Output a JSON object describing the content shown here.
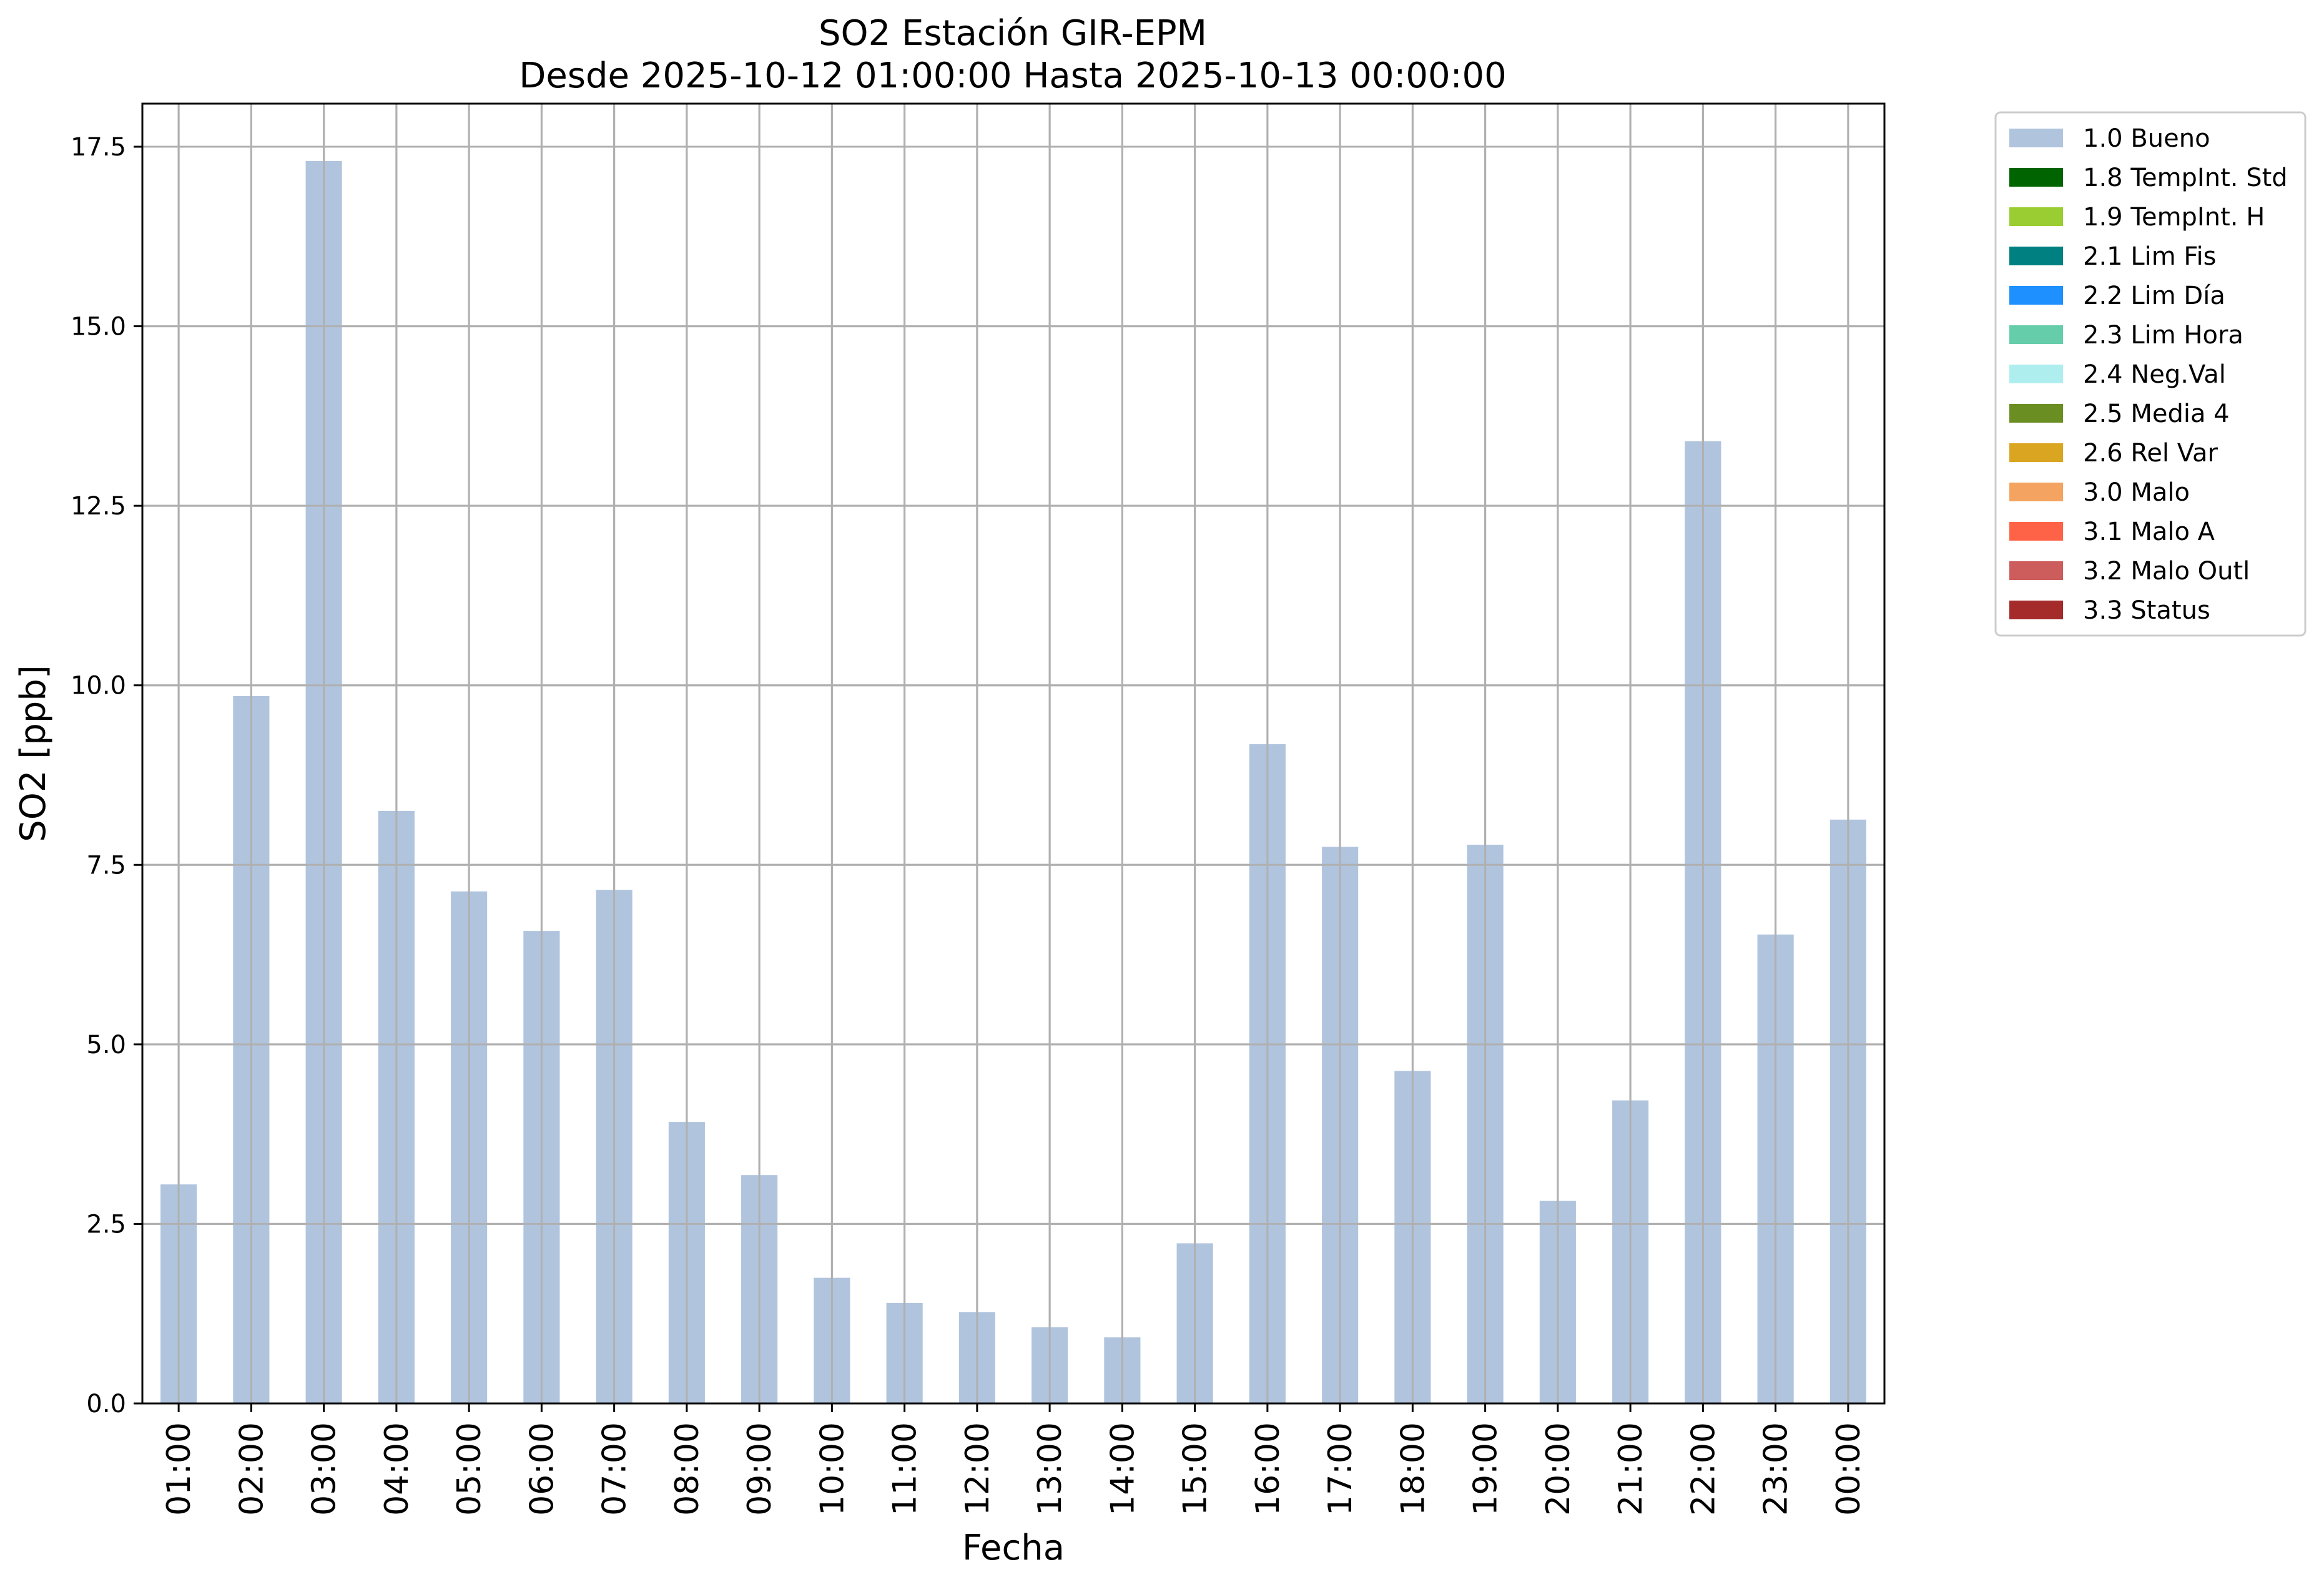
{
  "chart_data": {
    "type": "bar",
    "title": "SO2 Estación GIR-EPM",
    "subtitle": "Desde 2025-10-12 01:00:00 Hasta 2025-10-13 00:00:00",
    "xlabel": "Fecha",
    "ylabel": "SO2 [ppb]",
    "ylim": [
      0,
      18.1
    ],
    "yticks": [
      0.0,
      2.5,
      5.0,
      7.5,
      10.0,
      12.5,
      15.0,
      17.5
    ],
    "ytick_labels": [
      "0.0",
      "2.5",
      "5.0",
      "7.5",
      "10.0",
      "12.5",
      "15.0",
      "17.5"
    ],
    "grid": true,
    "legend_position": "outside-top-right",
    "categories": [
      "01:00",
      "02:00",
      "03:00",
      "04:00",
      "05:00",
      "06:00",
      "07:00",
      "08:00",
      "09:00",
      "10:00",
      "11:00",
      "12:00",
      "13:00",
      "14:00",
      "15:00",
      "16:00",
      "17:00",
      "18:00",
      "19:00",
      "20:00",
      "21:00",
      "22:00",
      "23:00",
      "00:00"
    ],
    "series": [
      {
        "name": "1.0 Bueno",
        "color": "#b0c4de",
        "values": [
          3.05,
          9.85,
          17.3,
          8.25,
          7.13,
          6.58,
          7.15,
          3.92,
          3.18,
          1.75,
          1.4,
          1.27,
          1.06,
          0.92,
          2.23,
          9.18,
          7.75,
          4.63,
          7.78,
          2.82,
          4.22,
          13.4,
          6.53,
          8.13
        ]
      }
    ],
    "legend": [
      {
        "label": "1.0 Bueno",
        "color": "#b0c4de"
      },
      {
        "label": "1.8 TempInt. Std",
        "color": "#006400"
      },
      {
        "label": "1.9 TempInt. H",
        "color": "#9acd32"
      },
      {
        "label": "2.1 Lim Fis",
        "color": "#008080"
      },
      {
        "label": "2.2 Lim Día",
        "color": "#1e90ff"
      },
      {
        "label": "2.3 Lim Hora",
        "color": "#66cdaa"
      },
      {
        "label": "2.4 Neg.Val",
        "color": "#afeeee"
      },
      {
        "label": "2.5 Media 4",
        "color": "#6b8e23"
      },
      {
        "label": "2.6 Rel Var",
        "color": "#daa520"
      },
      {
        "label": "3.0 Malo",
        "color": "#f4a460"
      },
      {
        "label": "3.1 Malo A",
        "color": "#ff6347"
      },
      {
        "label": "3.2 Malo Outl",
        "color": "#cd5c5c"
      },
      {
        "label": "3.3 Status",
        "color": "#a52a2a"
      }
    ]
  }
}
